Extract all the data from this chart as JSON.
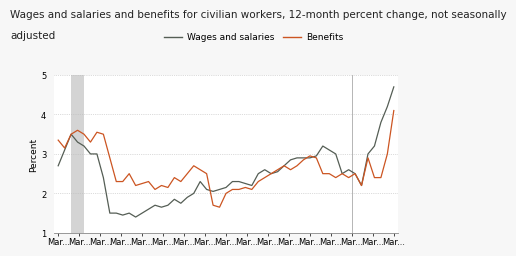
{
  "title_line1": "Wages and salaries and benefits for civilian workers, 12-month percent change, not seasonally",
  "title_line2": "adjusted",
  "ylabel": "Percent",
  "ylim": [
    1.0,
    5.0
  ],
  "yticks": [
    1.0,
    2.0,
    3.0,
    4.0,
    5.0
  ],
  "n_xtick_labels": 17,
  "xtick_label": "Mar...",
  "recession_xstart": 2,
  "recession_xend": 4,
  "vline_x": 14,
  "legend_labels": [
    "Wages and salaries",
    "Benefits"
  ],
  "wages_color": "#555e55",
  "benefits_color": "#cc5522",
  "background_color": "#f7f7f7",
  "plot_bg_color": "#ffffff",
  "grid_color": "#bbbbbb",
  "recession_color": "#d4d4d4",
  "wages_data": [
    2.7,
    3.1,
    3.5,
    3.3,
    3.2,
    3.0,
    3.0,
    2.4,
    1.5,
    1.5,
    1.45,
    1.5,
    1.4,
    1.5,
    1.6,
    1.7,
    1.65,
    1.7,
    1.85,
    1.75,
    1.9,
    2.0,
    2.3,
    2.1,
    2.05,
    2.1,
    2.15,
    2.3,
    2.3,
    2.25,
    2.2,
    2.5,
    2.6,
    2.5,
    2.55,
    2.7,
    2.85,
    2.9,
    2.9,
    2.9,
    2.95,
    3.2,
    3.1,
    3.0,
    2.5,
    2.6,
    2.5,
    2.2,
    3.0,
    3.2,
    3.8,
    4.2,
    4.7
  ],
  "benefits_data": [
    3.35,
    3.15,
    3.5,
    3.6,
    3.5,
    3.3,
    3.55,
    3.5,
    2.9,
    2.3,
    2.3,
    2.5,
    2.2,
    2.25,
    2.3,
    2.1,
    2.2,
    2.15,
    2.4,
    2.3,
    2.5,
    2.7,
    2.6,
    2.5,
    1.7,
    1.65,
    2.0,
    2.1,
    2.1,
    2.15,
    2.1,
    2.3,
    2.4,
    2.5,
    2.6,
    2.7,
    2.6,
    2.7,
    2.85,
    2.95,
    2.9,
    2.5,
    2.5,
    2.4,
    2.5,
    2.4,
    2.5,
    2.2,
    2.9,
    2.4,
    2.4,
    3.0,
    4.1
  ],
  "title_fontsize": 7.5,
  "ylabel_fontsize": 6.5,
  "tick_fontsize": 6,
  "legend_fontsize": 6.5
}
